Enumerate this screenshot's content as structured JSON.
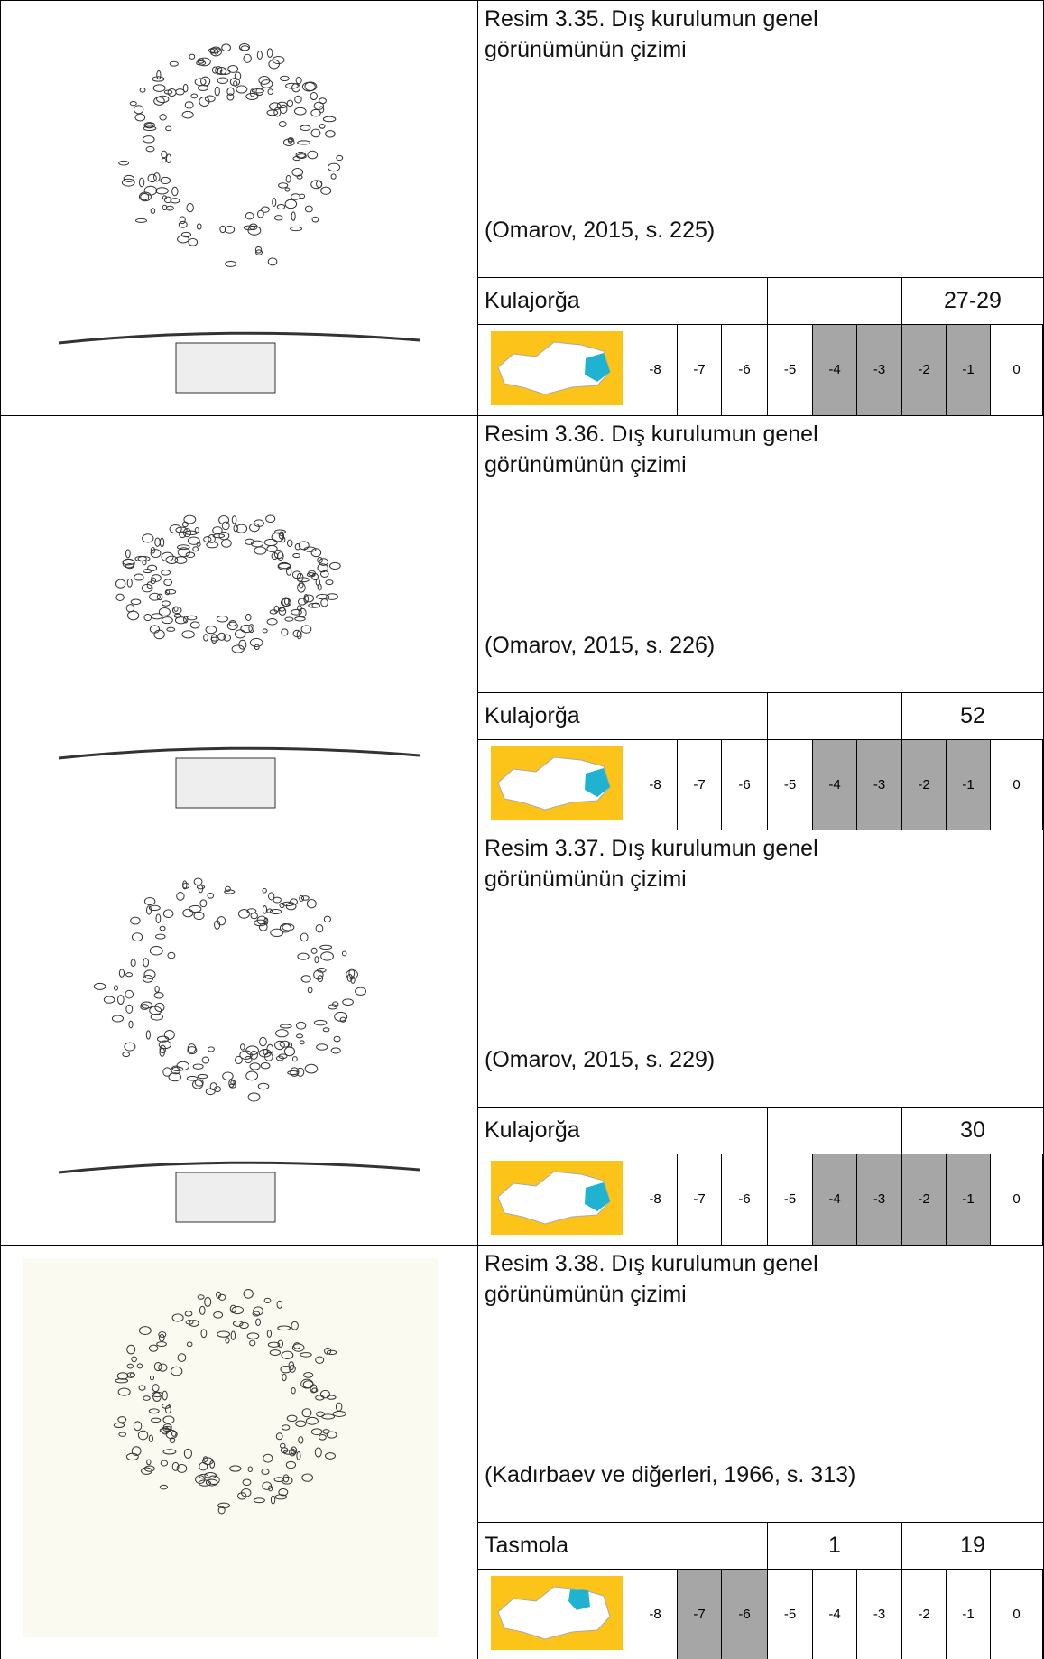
{
  "table": {
    "rows": [
      {
        "caption": "Resim 3.35. Dış kurulumun genel görünümünün çizimi",
        "source": "(Omarov, 2015, s. 225)",
        "site": "Kulajorğa",
        "number": "27-29",
        "scale": [
          -8,
          -7,
          -6,
          -5,
          -4,
          -3,
          -2,
          -1,
          0
        ],
        "shaded": [
          false,
          false,
          false,
          false,
          true,
          true,
          true,
          true,
          false
        ]
      },
      {
        "caption": "Resim 3.36. Dış kurulumun genel görünümünün çizimi",
        "source": "(Omarov, 2015, s. 226)",
        "site": "Kulajorğa",
        "number": "52",
        "scale": [
          -8,
          -7,
          -6,
          -5,
          -4,
          -3,
          -2,
          -1,
          0
        ],
        "shaded": [
          false,
          false,
          false,
          false,
          true,
          true,
          true,
          true,
          false
        ]
      },
      {
        "caption": "Resim 3.37. Dış kurulumun genel görünümünün çizimi",
        "source": "(Omarov, 2015, s. 229)",
        "site": "Kulajorğa",
        "number": "30",
        "scale": [
          -8,
          -7,
          -6,
          -5,
          -4,
          -3,
          -2,
          -1,
          0
        ],
        "shaded": [
          false,
          false,
          false,
          false,
          true,
          true,
          true,
          true,
          false
        ]
      },
      {
        "caption": "Resim 3.38. Dış kurulumun genel görünümünün çizimi",
        "source": "(Kadırbaev ve diğerleri, 1966, s. 313)",
        "site": "Tasmola",
        "group": "1",
        "number": "19",
        "scale": [
          -8,
          -7,
          -6,
          -5,
          -4,
          -3,
          -2,
          -1,
          0
        ],
        "shaded": [
          false,
          true,
          true,
          false,
          false,
          false,
          false,
          false,
          false
        ]
      }
    ]
  }
}
